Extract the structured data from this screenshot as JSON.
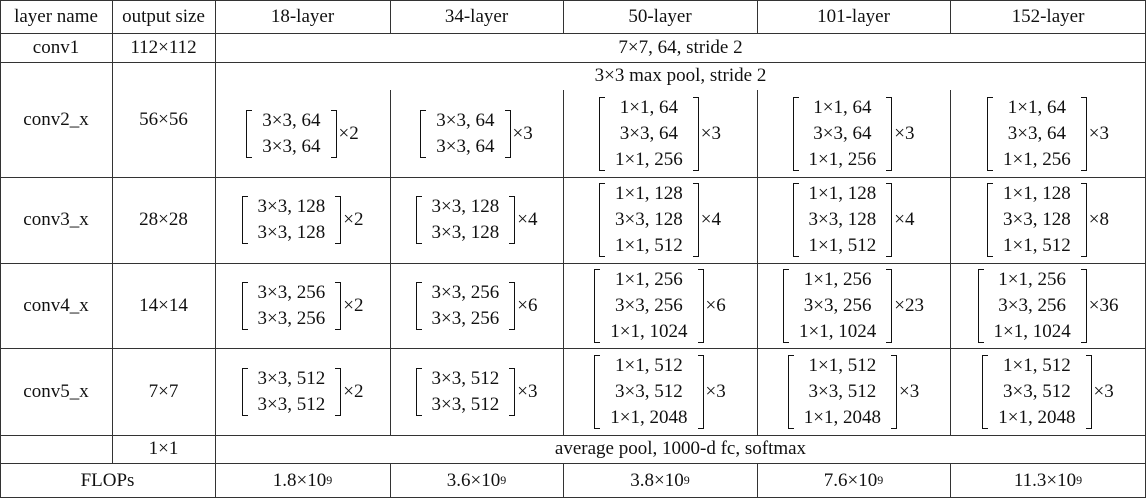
{
  "table": {
    "header": [
      "layer name",
      "output size",
      "18-layer",
      "34-layer",
      "50-layer",
      "101-layer",
      "152-layer"
    ],
    "rows": [
      {
        "layer": "conv1",
        "output": "112×112",
        "spanning": "7×7, 64, stride 2"
      },
      {
        "layer": "conv2_x",
        "output": "56×56",
        "pre": "3×3 max pool, stride 2",
        "blocks": [
          {
            "lines": [
              "3×3, 64",
              "3×3, 64"
            ],
            "times": "×2"
          },
          {
            "lines": [
              "3×3, 64",
              "3×3, 64"
            ],
            "times": "×3"
          },
          {
            "lines": [
              "1×1, 64",
              "3×3, 64",
              "1×1, 256"
            ],
            "times": "×3"
          },
          {
            "lines": [
              "1×1, 64",
              "3×3, 64",
              "1×1, 256"
            ],
            "times": "×3"
          },
          {
            "lines": [
              "1×1, 64",
              "3×3, 64",
              "1×1, 256"
            ],
            "times": "×3"
          }
        ]
      },
      {
        "layer": "conv3_x",
        "output": "28×28",
        "blocks": [
          {
            "lines": [
              "3×3, 128",
              "3×3, 128"
            ],
            "times": "×2"
          },
          {
            "lines": [
              "3×3, 128",
              "3×3, 128"
            ],
            "times": "×4"
          },
          {
            "lines": [
              "1×1, 128",
              "3×3, 128",
              "1×1, 512"
            ],
            "times": "×4"
          },
          {
            "lines": [
              "1×1, 128",
              "3×3, 128",
              "1×1, 512"
            ],
            "times": "×4"
          },
          {
            "lines": [
              "1×1, 128",
              "3×3, 128",
              "1×1, 512"
            ],
            "times": "×8"
          }
        ]
      },
      {
        "layer": "conv4_x",
        "output": "14×14",
        "blocks": [
          {
            "lines": [
              "3×3, 256",
              "3×3, 256"
            ],
            "times": "×2"
          },
          {
            "lines": [
              "3×3, 256",
              "3×3, 256"
            ],
            "times": "×6"
          },
          {
            "lines": [
              "1×1, 256",
              "3×3, 256",
              "1×1, 1024"
            ],
            "times": "×6"
          },
          {
            "lines": [
              "1×1, 256",
              "3×3, 256",
              "1×1, 1024"
            ],
            "times": "×23"
          },
          {
            "lines": [
              "1×1, 256",
              "3×3, 256",
              "1×1, 1024"
            ],
            "times": "×36"
          }
        ]
      },
      {
        "layer": "conv5_x",
        "output": "7×7",
        "blocks": [
          {
            "lines": [
              "3×3, 512",
              "3×3, 512"
            ],
            "times": "×2"
          },
          {
            "lines": [
              "3×3, 512",
              "3×3, 512"
            ],
            "times": "×3"
          },
          {
            "lines": [
              "1×1, 512",
              "3×3, 512",
              "1×1, 2048"
            ],
            "times": "×3"
          },
          {
            "lines": [
              "1×1, 512",
              "3×3, 512",
              "1×1, 2048"
            ],
            "times": "×3"
          },
          {
            "lines": [
              "1×1, 512",
              "3×3, 512",
              "1×1, 2048"
            ],
            "times": "×3"
          }
        ]
      },
      {
        "output": "1×1",
        "spanning": "average pool, 1000-d fc, softmax"
      },
      {
        "layer": "FLOPs",
        "flops": [
          {
            "base": "1.8×10",
            "exp": "9"
          },
          {
            "base": "3.6×10",
            "exp": "9"
          },
          {
            "base": "3.8×10",
            "exp": "9"
          },
          {
            "base": "7.6×10",
            "exp": "9"
          },
          {
            "base": "11.3×10",
            "exp": "9"
          }
        ]
      }
    ]
  }
}
